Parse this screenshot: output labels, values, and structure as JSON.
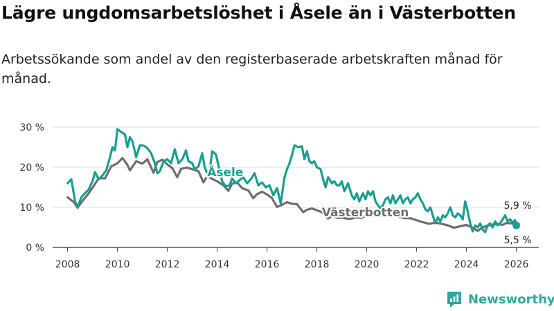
{
  "header": {
    "title": "Lägre ungdomsarbetslöshet i Åsele än i Västerbotten",
    "subtitle": "Arbetssökande som andel av den registerbaserade arbetskraften månad för månad."
  },
  "branding": {
    "name": "Newsworthy",
    "color": "#2ea89e"
  },
  "colors": {
    "asele": "#1a9e8f",
    "vasterbotten": "#6e6e6e",
    "grid": "#dddddd",
    "axis": "#333333"
  },
  "chart_data": {
    "type": "line",
    "title": "Lägre ungdomsarbetslöshet i Åsele än i Västerbotten",
    "subtitle": "Arbetssökande som andel av den registerbaserade arbetskraften månad för månad.",
    "xlabel": "",
    "ylabel": "",
    "xlim": [
      2007.4,
      2026.9
    ],
    "ylim": [
      0,
      30
    ],
    "y_ticks": [
      {
        "value": 0,
        "label": "0 %"
      },
      {
        "value": 10,
        "label": "10 %"
      },
      {
        "value": 20,
        "label": "20 %"
      },
      {
        "value": 30,
        "label": "30 %"
      }
    ],
    "x_ticks": [
      {
        "value": 2008,
        "label": "2008"
      },
      {
        "value": 2010,
        "label": "2010"
      },
      {
        "value": 2012,
        "label": "2012"
      },
      {
        "value": 2014,
        "label": "2014"
      },
      {
        "value": 2016,
        "label": "2016"
      },
      {
        "value": 2018,
        "label": "2018"
      },
      {
        "value": 2020,
        "label": "2020"
      },
      {
        "value": 2022,
        "label": "2022"
      },
      {
        "value": 2024,
        "label": "2024"
      },
      {
        "value": 2026,
        "label": "2026"
      }
    ],
    "grid": true,
    "series": [
      {
        "name": "Västerbotten",
        "label": "Västerbotten",
        "color": "#6e6e6e",
        "end_label": "5,9 %",
        "points": [
          [
            2008.0,
            12.5
          ],
          [
            2008.25,
            11.3
          ],
          [
            2008.4,
            9.9
          ],
          [
            2008.6,
            11.6
          ],
          [
            2008.8,
            13.1
          ],
          [
            2009.0,
            14.9
          ],
          [
            2009.25,
            17.3
          ],
          [
            2009.5,
            17.2
          ],
          [
            2009.75,
            20.2
          ],
          [
            2010.0,
            21.0
          ],
          [
            2010.2,
            22.3
          ],
          [
            2010.4,
            20.6
          ],
          [
            2010.5,
            19.2
          ],
          [
            2010.75,
            21.5
          ],
          [
            2011.0,
            20.9
          ],
          [
            2011.2,
            22.0
          ],
          [
            2011.45,
            18.6
          ],
          [
            2011.6,
            21.3
          ],
          [
            2011.8,
            21.9
          ],
          [
            2012.0,
            20.7
          ],
          [
            2012.2,
            19.8
          ],
          [
            2012.4,
            17.5
          ],
          [
            2012.55,
            19.6
          ],
          [
            2012.8,
            19.9
          ],
          [
            2013.0,
            19.5
          ],
          [
            2013.25,
            19.0
          ],
          [
            2013.45,
            16.2
          ],
          [
            2013.6,
            17.8
          ],
          [
            2013.8,
            17.1
          ],
          [
            2014.0,
            16.5
          ],
          [
            2014.25,
            15.5
          ],
          [
            2014.45,
            14.1
          ],
          [
            2014.6,
            15.9
          ],
          [
            2014.8,
            16.2
          ],
          [
            2015.0,
            14.8
          ],
          [
            2015.25,
            14.2
          ],
          [
            2015.45,
            12.3
          ],
          [
            2015.6,
            13.3
          ],
          [
            2015.8,
            13.9
          ],
          [
            2016.0,
            13.2
          ],
          [
            2016.2,
            12.3
          ],
          [
            2016.4,
            10.1
          ],
          [
            2016.6,
            10.6
          ],
          [
            2016.8,
            11.3
          ],
          [
            2017.0,
            10.9
          ],
          [
            2017.2,
            10.8
          ],
          [
            2017.45,
            8.8
          ],
          [
            2017.6,
            9.4
          ],
          [
            2017.8,
            9.7
          ],
          [
            2018.0,
            9.3
          ],
          [
            2018.2,
            8.8
          ],
          [
            2018.45,
            7.2
          ],
          [
            2018.6,
            7.8
          ],
          [
            2018.8,
            7.4
          ],
          [
            2019.0,
            7.4
          ],
          [
            2019.3,
            7.1
          ],
          [
            2019.6,
            7.5
          ],
          [
            2019.8,
            7.4
          ],
          [
            2020.0,
            7.9
          ],
          [
            2020.25,
            8.6
          ],
          [
            2020.5,
            7.9
          ],
          [
            2020.75,
            8.2
          ],
          [
            2021.0,
            8.3
          ],
          [
            2021.25,
            7.8
          ],
          [
            2021.5,
            7.3
          ],
          [
            2021.75,
            7.3
          ],
          [
            2022.0,
            6.8
          ],
          [
            2022.25,
            6.3
          ],
          [
            2022.5,
            5.9
          ],
          [
            2022.75,
            6.2
          ],
          [
            2023.0,
            5.9
          ],
          [
            2023.25,
            5.5
          ],
          [
            2023.5,
            4.9
          ],
          [
            2023.75,
            5.3
          ],
          [
            2024.0,
            5.6
          ],
          [
            2024.25,
            4.9
          ],
          [
            2024.45,
            4.1
          ],
          [
            2024.6,
            4.8
          ],
          [
            2024.8,
            5.4
          ],
          [
            2025.0,
            5.6
          ],
          [
            2025.25,
            5.9
          ],
          [
            2025.45,
            5.6
          ],
          [
            2025.6,
            6.1
          ],
          [
            2025.8,
            6.0
          ],
          [
            2026.0,
            5.9
          ]
        ]
      },
      {
        "name": "Åsele",
        "label": "Åsele",
        "color": "#1a9e8f",
        "end_label": "5,5 %",
        "points": [
          [
            2008.0,
            16.0
          ],
          [
            2008.15,
            17.0
          ],
          [
            2008.3,
            11.5
          ],
          [
            2008.4,
            10.0
          ],
          [
            2008.55,
            12.5
          ],
          [
            2008.7,
            13.5
          ],
          [
            2008.85,
            14.5
          ],
          [
            2009.0,
            16.5
          ],
          [
            2009.1,
            18.8
          ],
          [
            2009.25,
            17.0
          ],
          [
            2009.4,
            18.0
          ],
          [
            2009.55,
            19.2
          ],
          [
            2009.7,
            22.5
          ],
          [
            2009.8,
            25.0
          ],
          [
            2009.9,
            24.2
          ],
          [
            2010.0,
            29.5
          ],
          [
            2010.15,
            28.8
          ],
          [
            2010.3,
            28.2
          ],
          [
            2010.4,
            25.0
          ],
          [
            2010.5,
            27.5
          ],
          [
            2010.6,
            26.5
          ],
          [
            2010.75,
            22.5
          ],
          [
            2010.9,
            25.5
          ],
          [
            2011.05,
            25.4
          ],
          [
            2011.2,
            24.8
          ],
          [
            2011.35,
            23.5
          ],
          [
            2011.5,
            21.0
          ],
          [
            2011.6,
            18.5
          ],
          [
            2011.7,
            19.0
          ],
          [
            2011.85,
            21.5
          ],
          [
            2012.0,
            22.0
          ],
          [
            2012.15,
            21.0
          ],
          [
            2012.3,
            24.5
          ],
          [
            2012.45,
            21.0
          ],
          [
            2012.6,
            22.0
          ],
          [
            2012.75,
            24.2
          ],
          [
            2012.85,
            21.5
          ],
          [
            2013.0,
            21.0
          ],
          [
            2013.1,
            19.5
          ],
          [
            2013.25,
            20.2
          ],
          [
            2013.4,
            23.5
          ],
          [
            2013.5,
            20.0
          ],
          [
            2013.6,
            18.5
          ],
          [
            2013.7,
            19.0
          ],
          [
            2013.8,
            24.0
          ],
          [
            2013.95,
            23.2
          ],
          [
            2014.05,
            20.5
          ],
          [
            2014.2,
            16.5
          ],
          [
            2014.35,
            15.2
          ],
          [
            2014.5,
            15.5
          ],
          [
            2014.6,
            17.2
          ],
          [
            2014.75,
            16.0
          ],
          [
            2014.9,
            16.8
          ],
          [
            2015.05,
            17.5
          ],
          [
            2015.2,
            16.0
          ],
          [
            2015.35,
            17.0
          ],
          [
            2015.5,
            18.5
          ],
          [
            2015.65,
            15.5
          ],
          [
            2015.8,
            16.2
          ],
          [
            2015.95,
            15.0
          ],
          [
            2016.1,
            15.5
          ],
          [
            2016.25,
            13.0
          ],
          [
            2016.4,
            14.8
          ],
          [
            2016.55,
            11.0
          ],
          [
            2016.7,
            17.5
          ],
          [
            2016.8,
            19.5
          ],
          [
            2016.9,
            21.0
          ],
          [
            2017.0,
            23.0
          ],
          [
            2017.1,
            25.5
          ],
          [
            2017.25,
            25.0
          ],
          [
            2017.4,
            25.2
          ],
          [
            2017.5,
            22.0
          ],
          [
            2017.6,
            24.0
          ],
          [
            2017.7,
            21.5
          ],
          [
            2017.8,
            21.0
          ],
          [
            2017.9,
            21.5
          ],
          [
            2018.0,
            20.0
          ],
          [
            2018.15,
            19.5
          ],
          [
            2018.25,
            17.0
          ],
          [
            2018.35,
            15.0
          ],
          [
            2018.45,
            17.5
          ],
          [
            2018.6,
            16.0
          ],
          [
            2018.7,
            16.5
          ],
          [
            2018.8,
            15.5
          ],
          [
            2018.9,
            15.5
          ],
          [
            2019.0,
            16.5
          ],
          [
            2019.1,
            14.0
          ],
          [
            2019.25,
            16.0
          ],
          [
            2019.4,
            13.0
          ],
          [
            2019.5,
            12.0
          ],
          [
            2019.6,
            13.5
          ],
          [
            2019.7,
            11.5
          ],
          [
            2019.85,
            13.5
          ],
          [
            2019.95,
            12.0
          ],
          [
            2020.05,
            14.0
          ],
          [
            2020.15,
            13.0
          ],
          [
            2020.25,
            14.0
          ],
          [
            2020.35,
            11.5
          ],
          [
            2020.45,
            10.5
          ],
          [
            2020.55,
            9.8
          ],
          [
            2020.65,
            10.5
          ],
          [
            2020.75,
            12.0
          ],
          [
            2020.85,
            12.5
          ],
          [
            2020.95,
            11.0
          ],
          [
            2021.05,
            13.0
          ],
          [
            2021.15,
            11.0
          ],
          [
            2021.25,
            12.0
          ],
          [
            2021.35,
            13.0
          ],
          [
            2021.45,
            11.0
          ],
          [
            2021.55,
            12.0
          ],
          [
            2021.65,
            12.5
          ],
          [
            2021.75,
            11.0
          ],
          [
            2021.85,
            12.0
          ],
          [
            2021.95,
            12.5
          ],
          [
            2022.05,
            13.5
          ],
          [
            2022.15,
            12.0
          ],
          [
            2022.25,
            11.0
          ],
          [
            2022.35,
            9.5
          ],
          [
            2022.45,
            9.0
          ],
          [
            2022.55,
            10.0
          ],
          [
            2022.65,
            8.0
          ],
          [
            2022.75,
            6.0
          ],
          [
            2022.85,
            7.5
          ],
          [
            2022.95,
            6.5
          ],
          [
            2023.05,
            8.0
          ],
          [
            2023.15,
            7.5
          ],
          [
            2023.25,
            8.5
          ],
          [
            2023.35,
            10.0
          ],
          [
            2023.45,
            8.0
          ],
          [
            2023.55,
            7.5
          ],
          [
            2023.65,
            8.5
          ],
          [
            2023.75,
            8.0
          ],
          [
            2023.85,
            7.0
          ],
          [
            2023.95,
            11.5
          ],
          [
            2024.05,
            9.0
          ],
          [
            2024.15,
            6.0
          ],
          [
            2024.25,
            4.0
          ],
          [
            2024.35,
            5.5
          ],
          [
            2024.45,
            5.0
          ],
          [
            2024.55,
            6.0
          ],
          [
            2024.65,
            4.5
          ],
          [
            2024.75,
            3.8
          ],
          [
            2024.85,
            5.5
          ],
          [
            2024.95,
            6.0
          ],
          [
            2025.05,
            5.0
          ],
          [
            2025.15,
            6.5
          ],
          [
            2025.25,
            5.5
          ],
          [
            2025.35,
            6.0
          ],
          [
            2025.45,
            7.0
          ],
          [
            2025.55,
            8.0
          ],
          [
            2025.65,
            6.5
          ],
          [
            2025.75,
            7.0
          ],
          [
            2025.85,
            6.2
          ],
          [
            2025.95,
            6.8
          ],
          [
            2026.0,
            5.5
          ]
        ]
      }
    ]
  }
}
